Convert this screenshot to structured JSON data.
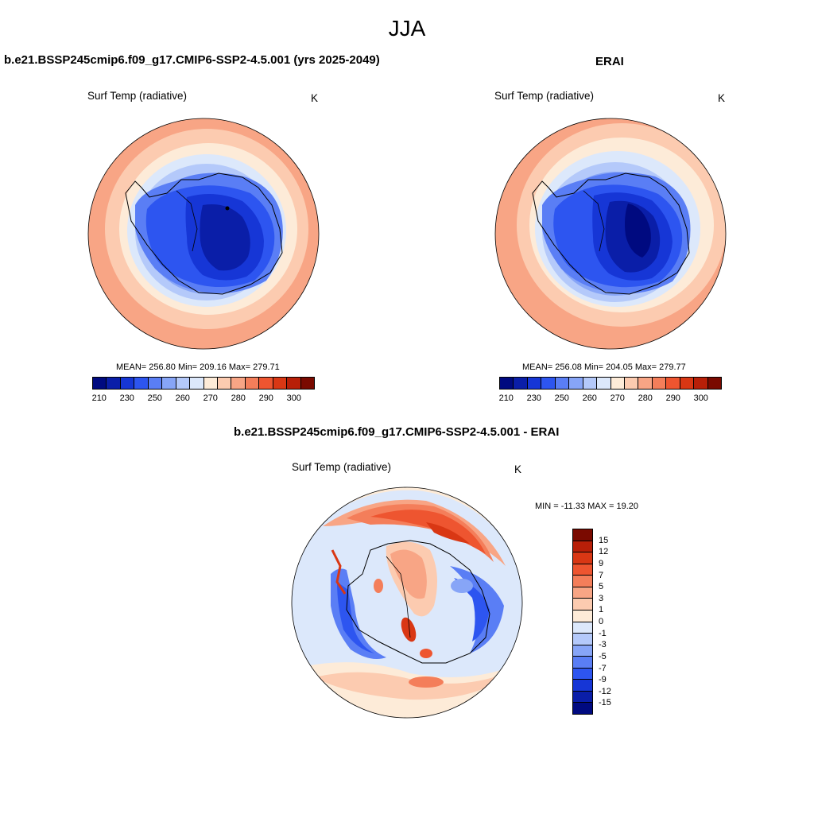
{
  "title": "JJA",
  "panels": [
    {
      "title": "b.e21.BSSP245cmip6.f09_g17.CMIP6-SSP2-4.5.001 (yrs 2025-2049)",
      "variable": "Surf Temp (radiative)",
      "units": "K",
      "stats": "MEAN= 256.80  Min= 209.16  Max= 279.71"
    },
    {
      "title": "ERAI",
      "variable": "Surf Temp (radiative)",
      "units": "K",
      "stats": "MEAN= 256.08  Min= 204.05  Max= 279.77"
    },
    {
      "title": "b.e21.BSSP245cmip6.f09_g17.CMIP6-SSP2-4.5.001 - ERAI",
      "variable": "Surf Temp (radiative)",
      "units": "K",
      "stats": "MIN = -11.33 MAX =  19.20"
    }
  ],
  "abs_colorbar": {
    "colors": [
      "#000a80",
      "#0a1ea8",
      "#1636d6",
      "#2d55f0",
      "#5a7ef5",
      "#87a5f7",
      "#b4c9fa",
      "#dce8fb",
      "#fdebd8",
      "#fccbb0",
      "#f8a585",
      "#f47e5a",
      "#ee5530",
      "#d93714",
      "#b81f08",
      "#7a0a00"
    ],
    "labels": [
      "210",
      "230",
      "250",
      "260",
      "270",
      "280",
      "290",
      "300"
    ]
  },
  "diff_colorbar": {
    "colors": [
      "#7a0a00",
      "#b81f08",
      "#d93714",
      "#ee5530",
      "#f47e5a",
      "#f8a585",
      "#fccbb0",
      "#fdebd8",
      "#dce8fb",
      "#b4c9fa",
      "#87a5f7",
      "#5a7ef5",
      "#2d55f0",
      "#1636d6",
      "#0a1ea8",
      "#000a80"
    ],
    "labels": [
      "15",
      "12",
      "9",
      "7",
      "5",
      "3",
      "1",
      "0",
      "-1",
      "-3",
      "-5",
      "-7",
      "-9",
      "-12",
      "-15"
    ]
  }
}
